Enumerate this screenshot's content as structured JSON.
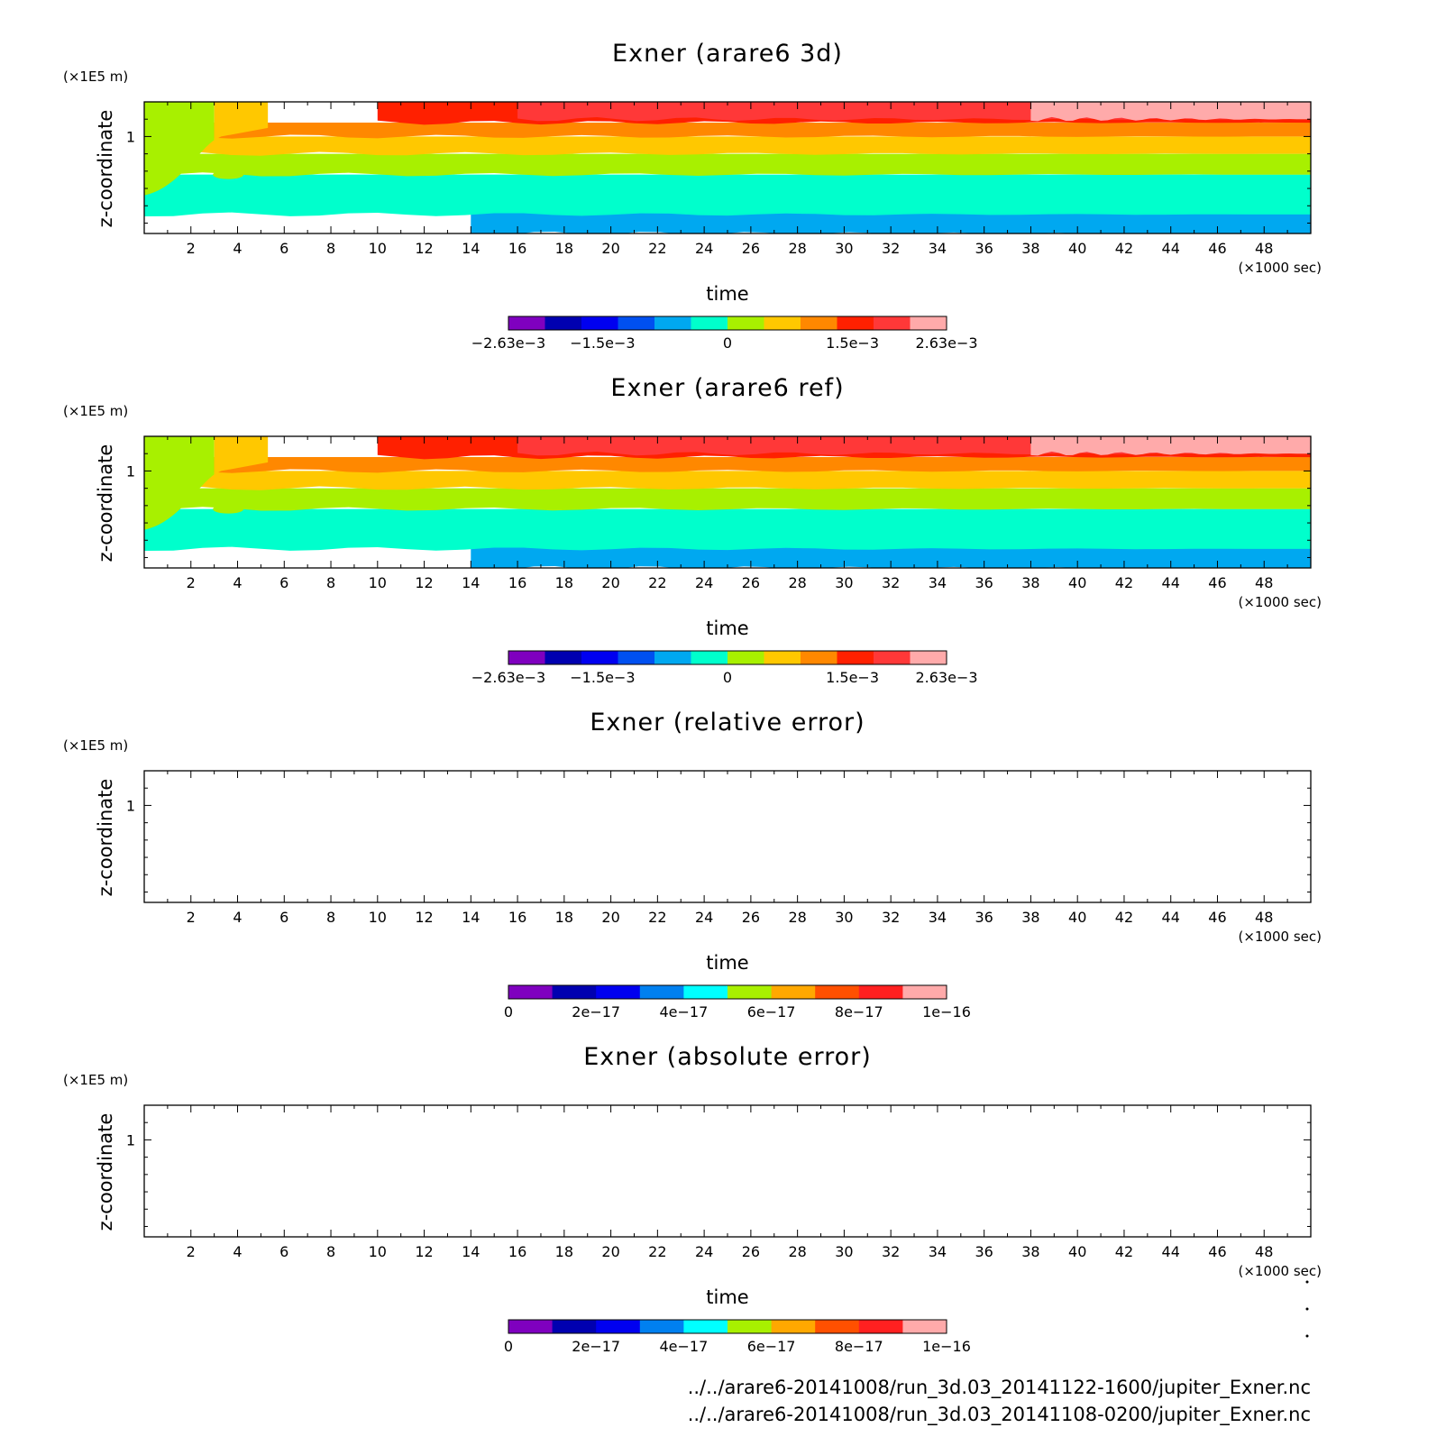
{
  "chart_data": [
    {
      "type": "heatmap",
      "title": "Exner (arare6 3d)",
      "xlabel": "time",
      "ylabel": "z-coordinate",
      "x_unit": "(×1000 sec)",
      "y_unit": "(×1E5 m)",
      "xlim": [
        0,
        50
      ],
      "ylim": [
        0.44,
        1.2
      ],
      "x_ticks": [
        "2",
        "4",
        "6",
        "8",
        "10",
        "12",
        "14",
        "16",
        "18",
        "20",
        "22",
        "24",
        "26",
        "28",
        "30",
        "32",
        "34",
        "36",
        "38",
        "40",
        "42",
        "44",
        "46",
        "48"
      ],
      "y_ticks": [
        "1"
      ],
      "colorbar": {
        "min": -0.00263,
        "max": 0.00263,
        "tick_labels": [
          "−2.63e−3",
          "−1.5e−3",
          "0",
          "1.5e−3",
          "2.63e−3"
        ],
        "tick_values": [
          -0.00263,
          -0.0015,
          0,
          0.0015,
          0.00263
        ],
        "colors": [
          "#7f00bf",
          "#0000b0",
          "#0000f0",
          "#0050f0",
          "#00a8f0",
          "#00ffcc",
          "#a8f000",
          "#ffc800",
          "#ff8800",
          "#ff2000",
          "#ff3838",
          "#ffaaaa"
        ]
      },
      "contour_bands": [
        {
          "color": "#00a8f0",
          "z_range": [
            0.44,
            0.65
          ],
          "from_time": 14
        },
        {
          "color": "#00ffcc",
          "z_range": [
            0.55,
            0.78
          ]
        },
        {
          "color": "#a8f000",
          "z_range": [
            0.78,
            0.9
          ]
        },
        {
          "color": "#ffc800",
          "z_range": [
            0.9,
            1.0
          ]
        },
        {
          "color": "#ff8800",
          "z_range": [
            1.0,
            1.08
          ]
        },
        {
          "color": "#ff2000",
          "z_range": [
            1.08,
            1.2
          ],
          "from_time": 10
        },
        {
          "color": "#ff3838",
          "z_range": [
            1.1,
            1.2
          ],
          "from_time": 16
        },
        {
          "color": "#ffaaaa",
          "z_range": [
            1.1,
            1.2
          ],
          "from_time": 38
        }
      ]
    },
    {
      "type": "heatmap",
      "title": "Exner (arare6 ref)",
      "xlabel": "time",
      "ylabel": "z-coordinate",
      "x_unit": "(×1000 sec)",
      "y_unit": "(×1E5 m)",
      "xlim": [
        0,
        50
      ],
      "ylim": [
        0.44,
        1.2
      ],
      "x_ticks": [
        "2",
        "4",
        "6",
        "8",
        "10",
        "12",
        "14",
        "16",
        "18",
        "20",
        "22",
        "24",
        "26",
        "28",
        "30",
        "32",
        "34",
        "36",
        "38",
        "40",
        "42",
        "44",
        "46",
        "48"
      ],
      "y_ticks": [
        "1"
      ],
      "colorbar": {
        "min": -0.00263,
        "max": 0.00263,
        "tick_labels": [
          "−2.63e−3",
          "−1.5e−3",
          "0",
          "1.5e−3",
          "2.63e−3"
        ],
        "tick_values": [
          -0.00263,
          -0.0015,
          0,
          0.0015,
          0.00263
        ],
        "colors": [
          "#7f00bf",
          "#0000b0",
          "#0000f0",
          "#0050f0",
          "#00a8f0",
          "#00ffcc",
          "#a8f000",
          "#ffc800",
          "#ff8800",
          "#ff2000",
          "#ff3838",
          "#ffaaaa"
        ]
      },
      "contour_bands": [
        {
          "color": "#00a8f0",
          "z_range": [
            0.44,
            0.65
          ],
          "from_time": 14
        },
        {
          "color": "#00ffcc",
          "z_range": [
            0.55,
            0.78
          ]
        },
        {
          "color": "#a8f000",
          "z_range": [
            0.78,
            0.9
          ]
        },
        {
          "color": "#ffc800",
          "z_range": [
            0.9,
            1.0
          ]
        },
        {
          "color": "#ff8800",
          "z_range": [
            1.0,
            1.08
          ]
        },
        {
          "color": "#ff2000",
          "z_range": [
            1.08,
            1.2
          ],
          "from_time": 10
        },
        {
          "color": "#ff3838",
          "z_range": [
            1.1,
            1.2
          ],
          "from_time": 16
        },
        {
          "color": "#ffaaaa",
          "z_range": [
            1.1,
            1.2
          ],
          "from_time": 38
        }
      ]
    },
    {
      "type": "heatmap",
      "title": "Exner (relative error)",
      "xlabel": "time",
      "ylabel": "z-coordinate",
      "x_unit": "(×1000 sec)",
      "y_unit": "(×1E5 m)",
      "xlim": [
        0,
        50
      ],
      "ylim": [
        0.44,
        1.2
      ],
      "x_ticks": [
        "2",
        "4",
        "6",
        "8",
        "10",
        "12",
        "14",
        "16",
        "18",
        "20",
        "22",
        "24",
        "26",
        "28",
        "30",
        "32",
        "34",
        "36",
        "38",
        "40",
        "42",
        "44",
        "46",
        "48"
      ],
      "y_ticks": [
        "1"
      ],
      "colorbar": {
        "min": 0,
        "max": 1e-16,
        "tick_labels": [
          "0",
          "2e−17",
          "4e−17",
          "6e−17",
          "8e−17",
          "1e−16"
        ],
        "tick_values": [
          0,
          2e-17,
          4e-17,
          6e-17,
          8e-17,
          1e-16
        ],
        "colors": [
          "#7f00bf",
          "#0000b0",
          "#0000f0",
          "#0080f0",
          "#00ffff",
          "#a8f000",
          "#ffa800",
          "#ff5000",
          "#ff2020",
          "#ffaaaa"
        ]
      },
      "contour_bands": []
    },
    {
      "type": "heatmap",
      "title": "Exner (absolute error)",
      "xlabel": "time",
      "ylabel": "z-coordinate",
      "x_unit": "(×1000 sec)",
      "y_unit": "(×1E5 m)",
      "xlim": [
        0,
        50
      ],
      "ylim": [
        0.44,
        1.2
      ],
      "x_ticks": [
        "2",
        "4",
        "6",
        "8",
        "10",
        "12",
        "14",
        "16",
        "18",
        "20",
        "22",
        "24",
        "26",
        "28",
        "30",
        "32",
        "34",
        "36",
        "38",
        "40",
        "42",
        "44",
        "46",
        "48"
      ],
      "y_ticks": [
        "1"
      ],
      "colorbar": {
        "min": 0,
        "max": 1e-16,
        "tick_labels": [
          "0",
          "2e−17",
          "4e−17",
          "6e−17",
          "8e−17",
          "1e−16"
        ],
        "tick_values": [
          0,
          2e-17,
          4e-17,
          6e-17,
          8e-17,
          1e-16
        ],
        "colors": [
          "#7f00bf",
          "#0000b0",
          "#0000f0",
          "#0080f0",
          "#00ffff",
          "#a8f000",
          "#ffa800",
          "#ff5000",
          "#ff2020",
          "#ffaaaa"
        ]
      },
      "contour_bands": []
    }
  ],
  "footer": {
    "files": [
      "../../arare6-20141008/run_3d.03_20141122-1600/jupiter_Exner.nc",
      "../../arare6-20141008/run_3d.03_20141108-0200/jupiter_Exner.nc"
    ]
  }
}
